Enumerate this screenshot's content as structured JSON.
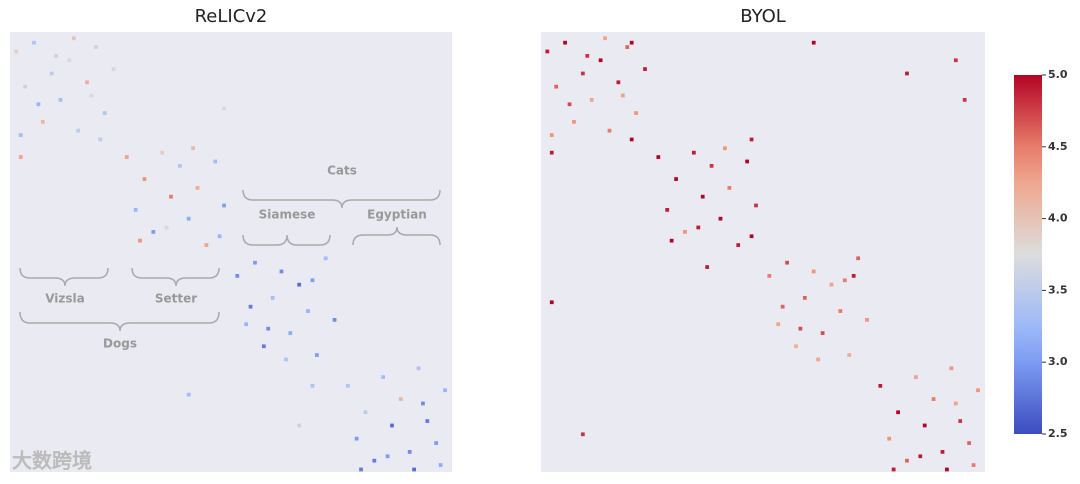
{
  "chart_data": [
    {
      "type": "heatmap",
      "title": "ReLICv2",
      "colormap": "coolwarm",
      "clim": [
        2.5,
        5.0
      ],
      "xlim": [
        0,
        100
      ],
      "ylim": [
        0,
        100
      ],
      "annotations": [
        "Cats",
        "Siamese",
        "Egyptian",
        "Vizsla",
        "Setter",
        "Dogs"
      ],
      "cells": [
        [
          1,
          4,
          3.9
        ],
        [
          3,
          12,
          3.6
        ],
        [
          5,
          2,
          3.4
        ],
        [
          7,
          20,
          4.1
        ],
        [
          9,
          9,
          3.5
        ],
        [
          11,
          15,
          3.3
        ],
        [
          13,
          6,
          3.8
        ],
        [
          15,
          22,
          3.5
        ],
        [
          17,
          11,
          4.2
        ],
        [
          19,
          3,
          3.6
        ],
        [
          21,
          18,
          3.4
        ],
        [
          23,
          8,
          3.7
        ],
        [
          6,
          16,
          3.2
        ],
        [
          14,
          1,
          4.0
        ],
        [
          20,
          24,
          3.5
        ],
        [
          2,
          23,
          3.3
        ],
        [
          10,
          5,
          3.6
        ],
        [
          18,
          14,
          3.7
        ],
        [
          26,
          28,
          4.3
        ],
        [
          28,
          40,
          3.2
        ],
        [
          30,
          33,
          4.4
        ],
        [
          32,
          45,
          3.0
        ],
        [
          34,
          27,
          3.9
        ],
        [
          36,
          37,
          4.5
        ],
        [
          38,
          30,
          3.4
        ],
        [
          40,
          42,
          3.1
        ],
        [
          42,
          35,
          4.2
        ],
        [
          44,
          48,
          4.3
        ],
        [
          46,
          29,
          3.3
        ],
        [
          48,
          39,
          3.0
        ],
        [
          29,
          47,
          4.4
        ],
        [
          35,
          44,
          3.7
        ],
        [
          41,
          26,
          4.1
        ],
        [
          47,
          46,
          3.2
        ],
        [
          51,
          55,
          2.9
        ],
        [
          53,
          66,
          3.2
        ],
        [
          55,
          52,
          3.0
        ],
        [
          57,
          71,
          2.8
        ],
        [
          59,
          60,
          3.3
        ],
        [
          61,
          54,
          2.9
        ],
        [
          63,
          68,
          3.1
        ],
        [
          65,
          57,
          2.7
        ],
        [
          67,
          63,
          3.2
        ],
        [
          69,
          73,
          3.0
        ],
        [
          71,
          51,
          3.3
        ],
        [
          73,
          65,
          2.9
        ],
        [
          54,
          62,
          2.8
        ],
        [
          62,
          74,
          3.4
        ],
        [
          68,
          56,
          3.0
        ],
        [
          58,
          67,
          2.9
        ],
        [
          76,
          80,
          3.4
        ],
        [
          78,
          92,
          3.0
        ],
        [
          80,
          86,
          3.5
        ],
        [
          82,
          97,
          2.8
        ],
        [
          84,
          78,
          3.3
        ],
        [
          86,
          89,
          2.7
        ],
        [
          88,
          83,
          4.1
        ],
        [
          90,
          95,
          2.9
        ],
        [
          92,
          76,
          3.4
        ],
        [
          94,
          88,
          2.8
        ],
        [
          96,
          93,
          3.0
        ],
        [
          98,
          81,
          3.2
        ],
        [
          79,
          99,
          2.8
        ],
        [
          91,
          99,
          2.7
        ],
        [
          97,
          98,
          3.1
        ],
        [
          85,
          96,
          3.0
        ],
        [
          93,
          84,
          2.9
        ],
        [
          48,
          17,
          3.7
        ],
        [
          2,
          28,
          4.3
        ],
        [
          40,
          82,
          3.3
        ],
        [
          68,
          80,
          3.4
        ],
        [
          65,
          89,
          3.6
        ]
      ]
    },
    {
      "type": "heatmap",
      "title": "BYOL",
      "colormap": "coolwarm",
      "clim": [
        2.5,
        5.0
      ],
      "xlim": [
        0,
        100
      ],
      "ylim": [
        0,
        100
      ],
      "cticks": [
        2.5,
        {
          "value": 3.0,
          "label": "3.0"
        },
        3.5,
        {
          "value": 4.0,
          "label": "4.0"
        },
        4.5,
        {
          "value": 5.0,
          "label": "5.0"
        }
      ],
      "cells": [
        [
          1,
          4,
          4.9
        ],
        [
          3,
          12,
          4.6
        ],
        [
          5,
          2,
          5.0
        ],
        [
          7,
          20,
          4.4
        ],
        [
          9,
          9,
          4.8
        ],
        [
          11,
          15,
          4.3
        ],
        [
          13,
          6,
          5.0
        ],
        [
          15,
          22,
          4.5
        ],
        [
          17,
          11,
          4.9
        ],
        [
          19,
          3,
          4.6
        ],
        [
          21,
          18,
          4.4
        ],
        [
          23,
          8,
          4.9
        ],
        [
          6,
          16,
          4.7
        ],
        [
          14,
          1,
          4.3
        ],
        [
          20,
          24,
          5.0
        ],
        [
          2,
          23,
          4.4
        ],
        [
          10,
          5,
          4.8
        ],
        [
          18,
          14,
          4.3
        ],
        [
          26,
          28,
          5.0
        ],
        [
          28,
          40,
          4.9
        ],
        [
          30,
          33,
          5.0
        ],
        [
          32,
          45,
          4.4
        ],
        [
          34,
          27,
          4.9
        ],
        [
          36,
          37,
          5.0
        ],
        [
          38,
          30,
          4.8
        ],
        [
          40,
          42,
          5.0
        ],
        [
          42,
          35,
          4.5
        ],
        [
          44,
          48,
          4.9
        ],
        [
          46,
          29,
          5.0
        ],
        [
          48,
          39,
          4.8
        ],
        [
          29,
          47,
          5.0
        ],
        [
          35,
          44,
          4.9
        ],
        [
          41,
          26,
          4.4
        ],
        [
          47,
          46,
          5.0
        ],
        [
          51,
          55,
          4.5
        ],
        [
          53,
          66,
          4.3
        ],
        [
          55,
          52,
          4.7
        ],
        [
          57,
          71,
          4.2
        ],
        [
          59,
          60,
          4.6
        ],
        [
          61,
          54,
          4.4
        ],
        [
          63,
          68,
          4.7
        ],
        [
          65,
          57,
          4.3
        ],
        [
          67,
          63,
          4.5
        ],
        [
          69,
          73,
          4.2
        ],
        [
          71,
          51,
          4.6
        ],
        [
          73,
          65,
          4.4
        ],
        [
          54,
          62,
          4.6
        ],
        [
          62,
          74,
          4.3
        ],
        [
          68,
          56,
          4.5
        ],
        [
          58,
          67,
          4.7
        ],
        [
          76,
          80,
          4.9
        ],
        [
          78,
          92,
          4.4
        ],
        [
          80,
          86,
          5.0
        ],
        [
          82,
          97,
          4.6
        ],
        [
          84,
          78,
          4.3
        ],
        [
          86,
          89,
          5.0
        ],
        [
          88,
          83,
          4.5
        ],
        [
          90,
          95,
          4.9
        ],
        [
          92,
          76,
          4.4
        ],
        [
          94,
          88,
          4.8
        ],
        [
          96,
          93,
          4.6
        ],
        [
          98,
          81,
          4.4
        ],
        [
          79,
          99,
          4.9
        ],
        [
          91,
          99,
          5.0
        ],
        [
          97,
          98,
          4.5
        ],
        [
          85,
          96,
          4.9
        ],
        [
          93,
          84,
          4.3
        ],
        [
          61,
          2,
          5.0
        ],
        [
          82,
          9,
          4.9
        ],
        [
          93,
          6,
          4.8
        ],
        [
          2,
          61,
          5.0
        ],
        [
          20,
          2,
          5.0
        ],
        [
          47,
          24,
          4.9
        ],
        [
          9,
          91,
          4.8
        ],
        [
          95,
          15,
          4.8
        ],
        [
          70,
          55,
          4.9
        ],
        [
          37,
          53,
          4.9
        ],
        [
          2,
          27,
          4.9
        ]
      ]
    }
  ],
  "watermark": "大数跨境"
}
